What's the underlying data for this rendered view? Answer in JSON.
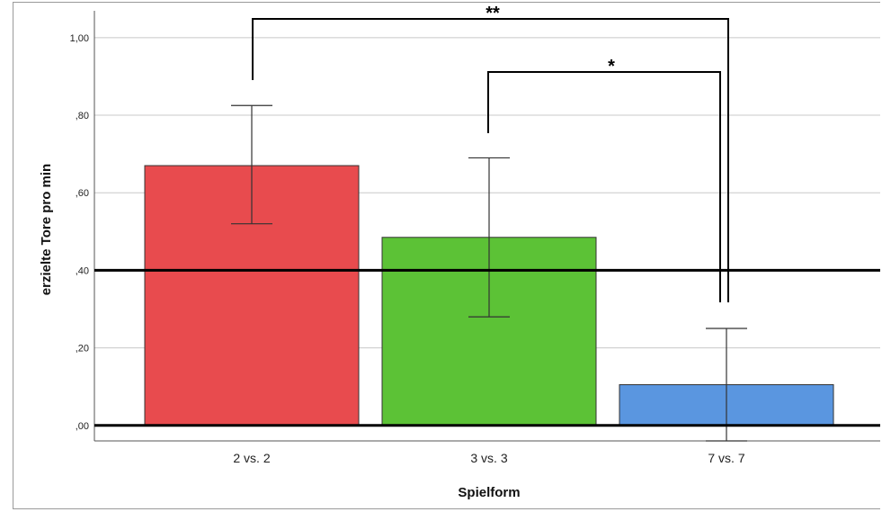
{
  "chart_data": {
    "type": "bar",
    "categories": [
      "2 vs. 2",
      "3 vs. 3",
      "7 vs. 7"
    ],
    "values": [
      0.67,
      0.485,
      0.105
    ],
    "error_low": [
      0.52,
      0.28,
      -0.04
    ],
    "error_high": [
      0.825,
      0.69,
      0.25
    ],
    "colors": [
      "#e84b4e",
      "#5cc236",
      "#5a96e0"
    ],
    "ylabel": "erzielte Tore pro min",
    "xlabel": "Spielform",
    "ylim": [
      -0.04,
      1.06
    ],
    "yticks": [
      0.0,
      0.2,
      0.4,
      0.6,
      0.8,
      1.0
    ],
    "ytick_labels": [
      ",00",
      ",20",
      ",40",
      ",60",
      ",80",
      "1,00"
    ],
    "grid": true,
    "reference_lines": [
      0.4,
      0.0
    ],
    "significance": [
      {
        "from": 0,
        "to": 2,
        "label": "**"
      },
      {
        "from": 1,
        "to": 2,
        "label": "*"
      }
    ]
  }
}
